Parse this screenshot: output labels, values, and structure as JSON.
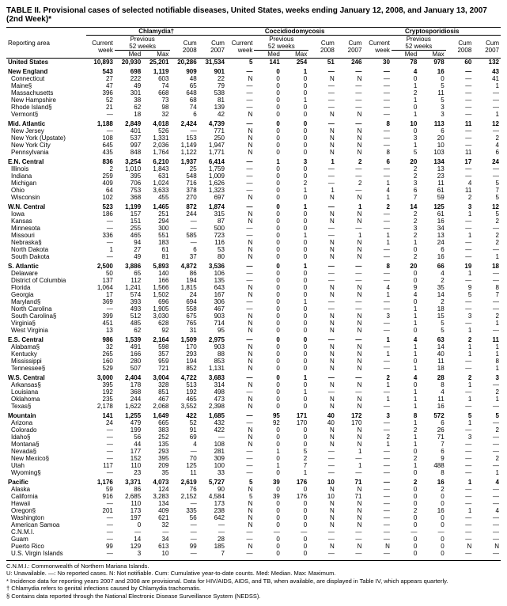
{
  "title": "TABLE II. Provisional cases of selected notifiable diseases, United States, weeks ending January 12, 2008, and January 13, 2007 (2nd Week)*",
  "diseases": [
    "Chlamydia†",
    "Coccidiodomycosis",
    "Cryptosporidiosis"
  ],
  "col_headers": {
    "reporting_area": "Reporting area",
    "current_week": "Current week",
    "previous": "Previous 52 weeks",
    "med": "Med",
    "max": "Max",
    "cum_2008": "Cum 2008",
    "cum_2007": "Cum 2007"
  },
  "sections": [
    {
      "head": [
        "United States",
        "10,893",
        "20,930",
        "25,201",
        "20,286",
        "31,534",
        "5",
        "141",
        "254",
        "51",
        "246",
        "30",
        "78",
        "978",
        "60",
        "132"
      ],
      "rows": []
    },
    {
      "head": [
        "New England",
        "543",
        "698",
        "1,119",
        "909",
        "901",
        "—",
        "0",
        "1",
        "—",
        "—",
        "—",
        "4",
        "16",
        "—",
        "43"
      ],
      "rows": [
        [
          "Connecticut",
          "27",
          "222",
          "603",
          "48",
          "22",
          "N",
          "0",
          "0",
          "N",
          "N",
          "—",
          "0",
          "0",
          "—",
          "41"
        ],
        [
          "Maine§",
          "47",
          "49",
          "74",
          "65",
          "79",
          "—",
          "0",
          "0",
          "—",
          "—",
          "—",
          "1",
          "5",
          "—",
          "1"
        ],
        [
          "Massachusetts",
          "396",
          "301",
          "668",
          "648",
          "538",
          "—",
          "0",
          "0",
          "—",
          "—",
          "—",
          "2",
          "11",
          "—",
          "—"
        ],
        [
          "New Hampshire",
          "52",
          "38",
          "73",
          "68",
          "81",
          "—",
          "0",
          "1",
          "—",
          "—",
          "—",
          "1",
          "5",
          "—",
          "—"
        ],
        [
          "Rhode Island§",
          "21",
          "62",
          "98",
          "74",
          "139",
          "—",
          "0",
          "0",
          "—",
          "—",
          "—",
          "0",
          "3",
          "—",
          "—"
        ],
        [
          "Vermont§",
          "—",
          "18",
          "32",
          "6",
          "42",
          "N",
          "0",
          "0",
          "N",
          "N",
          "—",
          "1",
          "3",
          "—",
          "1"
        ]
      ]
    },
    {
      "head": [
        "Mid. Atlantic",
        "1,188",
        "2,849",
        "4,018",
        "2,424",
        "4,739",
        "—",
        "0",
        "0",
        "—",
        "—",
        "8",
        "10",
        "113",
        "11",
        "12"
      ],
      "rows": [
        [
          "New Jersey",
          "—",
          "401",
          "526",
          "—",
          "771",
          "N",
          "0",
          "0",
          "N",
          "N",
          "—",
          "0",
          "6",
          "—",
          "—"
        ],
        [
          "New York (Upstate)",
          "108",
          "537",
          "1,331",
          "153",
          "250",
          "N",
          "0",
          "0",
          "N",
          "N",
          "—",
          "3",
          "20",
          "—",
          "2"
        ],
        [
          "New York City",
          "645",
          "997",
          "2,036",
          "1,149",
          "1,947",
          "N",
          "0",
          "0",
          "N",
          "N",
          "—",
          "1",
          "10",
          "—",
          "4"
        ],
        [
          "Pennsylvania",
          "435",
          "848",
          "1,764",
          "1,122",
          "1,771",
          "N",
          "0",
          "0",
          "N",
          "N",
          "8",
          "5",
          "103",
          "11",
          "6"
        ]
      ]
    },
    {
      "head": [
        "E.N. Central",
        "836",
        "3,254",
        "6,210",
        "1,937",
        "6,414",
        "—",
        "1",
        "3",
        "1",
        "2",
        "6",
        "20",
        "134",
        "17",
        "24"
      ],
      "rows": [
        [
          "Illinois",
          "2",
          "1,010",
          "1,843",
          "25",
          "1,759",
          "—",
          "0",
          "0",
          "—",
          "—",
          "—",
          "2",
          "13",
          "—",
          "—"
        ],
        [
          "Indiana",
          "259",
          "395",
          "631",
          "548",
          "1,009",
          "—",
          "0",
          "0",
          "—",
          "—",
          "—",
          "2",
          "23",
          "—",
          "—"
        ],
        [
          "Michigan",
          "409",
          "706",
          "1,024",
          "716",
          "1,626",
          "—",
          "0",
          "2",
          "—",
          "2",
          "1",
          "3",
          "11",
          "4",
          "5"
        ],
        [
          "Ohio",
          "64",
          "753",
          "3,633",
          "378",
          "1,323",
          "—",
          "0",
          "1",
          "1",
          "—",
          "4",
          "6",
          "61",
          "11",
          "7"
        ],
        [
          "Wisconsin",
          "102",
          "368",
          "455",
          "270",
          "697",
          "N",
          "0",
          "0",
          "N",
          "N",
          "1",
          "7",
          "59",
          "2",
          "5"
        ]
      ]
    },
    {
      "head": [
        "W.N. Central",
        "523",
        "1,199",
        "1,465",
        "872",
        "1,874",
        "—",
        "0",
        "1",
        "—",
        "1",
        "2",
        "14",
        "125",
        "3",
        "12"
      ],
      "rows": [
        [
          "Iowa",
          "186",
          "157",
          "251",
          "244",
          "315",
          "N",
          "0",
          "0",
          "N",
          "N",
          "—",
          "2",
          "61",
          "1",
          "5"
        ],
        [
          "Kansas",
          "—",
          "151",
          "294",
          "—",
          "87",
          "N",
          "0",
          "0",
          "N",
          "N",
          "—",
          "2",
          "16",
          "—",
          "2"
        ],
        [
          "Minnesota",
          "—",
          "255",
          "300",
          "—",
          "500",
          "—",
          "0",
          "0",
          "—",
          "—",
          "—",
          "3",
          "34",
          "—",
          "—"
        ],
        [
          "Missouri",
          "336",
          "465",
          "551",
          "585",
          "723",
          "—",
          "0",
          "1",
          "—",
          "1",
          "1",
          "2",
          "13",
          "1",
          "2"
        ],
        [
          "Nebraska§",
          "—",
          "94",
          "183",
          "—",
          "116",
          "N",
          "0",
          "0",
          "N",
          "N",
          "1",
          "1",
          "24",
          "—",
          "2"
        ],
        [
          "North Dakota",
          "1",
          "27",
          "61",
          "6",
          "53",
          "N",
          "0",
          "0",
          "N",
          "N",
          "—",
          "0",
          "6",
          "—",
          "—"
        ],
        [
          "South Dakota",
          "—",
          "49",
          "81",
          "37",
          "80",
          "N",
          "0",
          "0",
          "N",
          "N",
          "—",
          "2",
          "16",
          "—",
          "1"
        ]
      ]
    },
    {
      "head": [
        "S. Atlantic",
        "2,500",
        "3,886",
        "5,893",
        "4,872",
        "3,536",
        "—",
        "0",
        "1",
        "—",
        "—",
        "8",
        "20",
        "66",
        "19",
        "18"
      ],
      "rows": [
        [
          "Delaware",
          "50",
          "65",
          "140",
          "86",
          "106",
          "—",
          "0",
          "0",
          "—",
          "—",
          "—",
          "0",
          "4",
          "1",
          "—"
        ],
        [
          "District of Columbia",
          "137",
          "112",
          "166",
          "194",
          "135",
          "—",
          "0",
          "0",
          "—",
          "—",
          "—",
          "0",
          "2",
          "—",
          "—"
        ],
        [
          "Florida",
          "1,064",
          "1,241",
          "1,566",
          "1,815",
          "643",
          "N",
          "0",
          "0",
          "N",
          "N",
          "4",
          "9",
          "35",
          "9",
          "8"
        ],
        [
          "Georgia",
          "17",
          "574",
          "1,502",
          "24",
          "167",
          "N",
          "0",
          "0",
          "N",
          "N",
          "1",
          "4",
          "14",
          "5",
          "7"
        ],
        [
          "Maryland§",
          "369",
          "393",
          "696",
          "694",
          "306",
          "—",
          "0",
          "1",
          "—",
          "—",
          "—",
          "0",
          "2",
          "—",
          "—"
        ],
        [
          "North Carolina",
          "—",
          "493",
          "1,905",
          "558",
          "467",
          "—",
          "0",
          "0",
          "—",
          "—",
          "—",
          "1",
          "18",
          "—",
          "—"
        ],
        [
          "South Carolina§",
          "399",
          "512",
          "3,030",
          "675",
          "903",
          "N",
          "0",
          "0",
          "N",
          "N",
          "3",
          "1",
          "15",
          "3",
          "2"
        ],
        [
          "Virginia§",
          "451",
          "485",
          "628",
          "765",
          "714",
          "N",
          "0",
          "0",
          "N",
          "N",
          "—",
          "1",
          "5",
          "—",
          "1"
        ],
        [
          "West Virginia",
          "13",
          "62",
          "92",
          "31",
          "95",
          "N",
          "0",
          "0",
          "N",
          "N",
          "—",
          "0",
          "5",
          "1",
          "—"
        ]
      ]
    },
    {
      "head": [
        "E.S. Central",
        "986",
        "1,539",
        "2,164",
        "1,509",
        "2,975",
        "—",
        "0",
        "0",
        "—",
        "—",
        "1",
        "4",
        "63",
        "2",
        "11"
      ],
      "rows": [
        [
          "Alabama§",
          "32",
          "491",
          "598",
          "170",
          "903",
          "N",
          "0",
          "0",
          "N",
          "N",
          "—",
          "1",
          "14",
          "1",
          "1"
        ],
        [
          "Kentucky",
          "265",
          "166",
          "357",
          "293",
          "88",
          "N",
          "0",
          "0",
          "N",
          "N",
          "1",
          "1",
          "40",
          "1",
          "1"
        ],
        [
          "Mississippi",
          "160",
          "280",
          "959",
          "194",
          "853",
          "N",
          "0",
          "0",
          "N",
          "N",
          "—",
          "0",
          "11",
          "—",
          "8"
        ],
        [
          "Tennessee§",
          "529",
          "507",
          "721",
          "852",
          "1,131",
          "N",
          "0",
          "0",
          "N",
          "N",
          "—",
          "1",
          "18",
          "—",
          "1"
        ]
      ]
    },
    {
      "head": [
        "W.S. Central",
        "3,000",
        "2,404",
        "3,004",
        "4,722",
        "3,683",
        "—",
        "0",
        "1",
        "—",
        "—",
        "2",
        "4",
        "28",
        "2",
        "3"
      ],
      "rows": [
        [
          "Arkansas§",
          "395",
          "178",
          "328",
          "513",
          "314",
          "N",
          "0",
          "0",
          "N",
          "N",
          "1",
          "0",
          "8",
          "1",
          "—"
        ],
        [
          "Louisiana",
          "192",
          "368",
          "851",
          "192",
          "498",
          "—",
          "0",
          "1",
          "—",
          "—",
          "—",
          "1",
          "4",
          "—",
          "2"
        ],
        [
          "Oklahoma",
          "235",
          "244",
          "467",
          "465",
          "473",
          "N",
          "0",
          "0",
          "N",
          "N",
          "1",
          "1",
          "11",
          "1",
          "1"
        ],
        [
          "Texas§",
          "2,178",
          "1,622",
          "2,068",
          "3,552",
          "2,398",
          "N",
          "0",
          "0",
          "N",
          "N",
          "—",
          "1",
          "16",
          "—",
          "—"
        ]
      ]
    },
    {
      "head": [
        "Mountain",
        "141",
        "1,255",
        "1,649",
        "422",
        "1,685",
        "—",
        "95",
        "171",
        "40",
        "172",
        "3",
        "8",
        "572",
        "5",
        "5"
      ],
      "rows": [
        [
          "Arizona",
          "24",
          "479",
          "665",
          "52",
          "432",
          "—",
          "92",
          "170",
          "40",
          "170",
          "—",
          "1",
          "6",
          "1",
          "—"
        ],
        [
          "Colorado",
          "—",
          "199",
          "383",
          "91",
          "422",
          "N",
          "0",
          "0",
          "N",
          "N",
          "—",
          "2",
          "26",
          "—",
          "2"
        ],
        [
          "Idaho§",
          "—",
          "56",
          "252",
          "69",
          "—",
          "N",
          "0",
          "0",
          "N",
          "N",
          "2",
          "1",
          "71",
          "3",
          "—"
        ],
        [
          "Montana§",
          "—",
          "44",
          "135",
          "4",
          "108",
          "N",
          "0",
          "0",
          "N",
          "N",
          "1",
          "1",
          "7",
          "—",
          "—"
        ],
        [
          "Nevada§",
          "—",
          "177",
          "293",
          "—",
          "281",
          "—",
          "1",
          "5",
          "—",
          "1",
          "—",
          "0",
          "6",
          "—",
          "—"
        ],
        [
          "New Mexico§",
          "—",
          "152",
          "395",
          "70",
          "309",
          "—",
          "0",
          "2",
          "—",
          "—",
          "—",
          "2",
          "9",
          "—",
          "2"
        ],
        [
          "Utah",
          "117",
          "110",
          "209",
          "125",
          "100",
          "—",
          "1",
          "7",
          "—",
          "1",
          "—",
          "1",
          "488",
          "—",
          "—"
        ],
        [
          "Wyoming§",
          "—",
          "23",
          "35",
          "11",
          "33",
          "—",
          "0",
          "1",
          "—",
          "—",
          "—",
          "0",
          "8",
          "—",
          "1"
        ]
      ]
    },
    {
      "head": [
        "Pacific",
        "1,176",
        "3,371",
        "4,073",
        "2,619",
        "5,727",
        "5",
        "39",
        "176",
        "10",
        "71",
        "—",
        "2",
        "16",
        "1",
        "4"
      ],
      "rows": [
        [
          "Alaska",
          "59",
          "86",
          "124",
          "76",
          "90",
          "N",
          "0",
          "0",
          "N",
          "N",
          "—",
          "0",
          "2",
          "—",
          "—"
        ],
        [
          "California",
          "916",
          "2,685",
          "3,283",
          "2,152",
          "4,584",
          "5",
          "39",
          "176",
          "10",
          "71",
          "—",
          "0",
          "0",
          "—",
          "—"
        ],
        [
          "Hawaii",
          "—",
          "110",
          "134",
          "—",
          "173",
          "N",
          "0",
          "0",
          "N",
          "N",
          "—",
          "0",
          "0",
          "—",
          "—"
        ],
        [
          "Oregon§",
          "201",
          "173",
          "409",
          "335",
          "238",
          "N",
          "0",
          "0",
          "N",
          "N",
          "—",
          "2",
          "16",
          "1",
          "4"
        ],
        [
          "Washington",
          "—",
          "197",
          "621",
          "56",
          "642",
          "N",
          "0",
          "0",
          "N",
          "N",
          "—",
          "0",
          "0",
          "—",
          "—"
        ]
      ]
    },
    {
      "head": null,
      "rows": [
        [
          "American Samoa",
          "—",
          "0",
          "32",
          "—",
          "—",
          "N",
          "0",
          "0",
          "N",
          "N",
          "—",
          "0",
          "0",
          "—",
          "—"
        ],
        [
          "C.N.M.I.",
          "—",
          "—",
          "—",
          "—",
          "—",
          "—",
          "—",
          "—",
          "—",
          "—",
          "—",
          "—",
          "—",
          "—",
          "—"
        ],
        [
          "Guam",
          "—",
          "14",
          "34",
          "—",
          "28",
          "—",
          "0",
          "0",
          "—",
          "—",
          "—",
          "0",
          "0",
          "—",
          "—"
        ],
        [
          "Puerto Rico",
          "99",
          "129",
          "613",
          "99",
          "185",
          "N",
          "0",
          "0",
          "N",
          "N",
          "N",
          "0",
          "0",
          "N",
          "N"
        ],
        [
          "U.S. Virgin Islands",
          "—",
          "3",
          "10",
          "—",
          "7",
          "—",
          "0",
          "0",
          "—",
          "—",
          "—",
          "0",
          "0",
          "—",
          "—"
        ]
      ]
    }
  ],
  "footnotes": [
    "C.N.M.I.: Commonwealth of Northern Mariana Islands.",
    "U: Unavailable.   —: No reported cases.   N: Not notifiable.   Cum: Cumulative year-to-date counts.   Med: Median.   Max: Maximum.",
    "* Incidence data for reporting years 2007 and 2008 are provisional. Data for HIV/AIDS, AIDS, and TB, when available, are displayed in Table IV, which appears quarterly.",
    "† Chlamydia refers to genital infections caused by Chlamydia trachomatis.",
    "§ Contains data reported through the National Electronic Disease Surveillance System (NEDSS)."
  ]
}
